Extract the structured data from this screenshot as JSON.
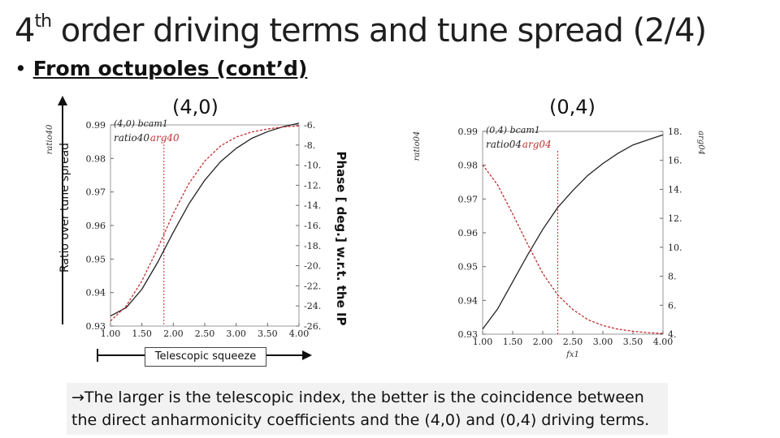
{
  "slide": {
    "title_sup": "th",
    "title_num": "4",
    "title_rest": "order driving terms and tune spread (2/4)",
    "bullet_mark": "•",
    "bullet": "From octupoles (cont’d)",
    "left_plot_title": "(4,0)",
    "right_plot_title": "(0,4)",
    "y_axis_note": "Ratio over tune spread",
    "phase_note": "Phase [ deg.] w.r.t. the IP",
    "x_axis_note": "Telescopic squeeze",
    "arrow_glyph": "→",
    "note_text": "The larger is the telescopic index, the better is the coincidence between the direct anharmonicity coefficients and the (4,0) and (0,4) driving terms."
  },
  "chart_data": [
    {
      "type": "line",
      "legend_lines": [
        "(4,0) bcam1",
        "ratio40",
        "arg40"
      ],
      "ylabel_left": "ratio40",
      "ylabel_right": "arg40",
      "x_ticks": [
        "1.00",
        "1.50",
        "2.00",
        "2.50",
        "3.00",
        "3.50",
        "4.00"
      ],
      "y_ticks": [
        "0.99",
        "0.98",
        "0.97",
        "0.96",
        "0.95",
        "0.94",
        "0.93"
      ],
      "y2_ticks": [
        "-6.",
        "-8.",
        "-10.",
        "-12.",
        "-14.",
        "-16.",
        "-18.",
        "-20.",
        "-22.",
        "-24.",
        "-26."
      ],
      "xlim": [
        1.0,
        4.0
      ],
      "ylim": [
        0.93,
        0.99
      ],
      "y2lim": [
        -26,
        -6
      ],
      "series": [
        {
          "name": "ratio40",
          "color": "#222222",
          "style": "solid",
          "axis": "left",
          "x": [
            1.0,
            1.25,
            1.5,
            1.75,
            2.0,
            2.25,
            2.5,
            2.75,
            3.0,
            3.25,
            3.5,
            3.75,
            4.0
          ],
          "y": [
            0.933,
            0.9355,
            0.941,
            0.949,
            0.958,
            0.9665,
            0.9735,
            0.979,
            0.983,
            0.986,
            0.988,
            0.9895,
            0.9905
          ]
        },
        {
          "name": "arg40",
          "color": "#c03030",
          "style": "dashed",
          "axis": "right",
          "x": [
            1.0,
            1.25,
            1.5,
            1.75,
            2.0,
            2.25,
            2.5,
            2.75,
            3.0,
            3.25,
            3.5,
            3.75,
            4.0
          ],
          "y": [
            -25.5,
            -24.0,
            -21.5,
            -18.3,
            -14.8,
            -11.8,
            -9.6,
            -8.1,
            -7.2,
            -6.7,
            -6.4,
            -6.2,
            -6.1
          ]
        }
      ]
    },
    {
      "type": "line",
      "legend_lines": [
        "(0,4) bcam1",
        "ratio04",
        "arg04"
      ],
      "ylabel_left": "ratio04",
      "ylabel_right": "arg04",
      "xlabel": "fx1",
      "x_ticks": [
        "1.00",
        "1.50",
        "2.00",
        "2.50",
        "3.00",
        "3.50",
        "4.00"
      ],
      "y_ticks": [
        "0.99",
        "0.98",
        "0.97",
        "0.96",
        "0.95",
        "0.94",
        "0.93"
      ],
      "y2_ticks": [
        "18.",
        "16.",
        "14.",
        "12.",
        "10.",
        "8.",
        "6.",
        "4."
      ],
      "xlim": [
        1.0,
        4.0
      ],
      "ylim": [
        0.93,
        0.99
      ],
      "y2lim": [
        4,
        18
      ],
      "series": [
        {
          "name": "ratio04",
          "color": "#222222",
          "style": "solid",
          "axis": "left",
          "x": [
            1.0,
            1.25,
            1.5,
            1.75,
            2.0,
            2.25,
            2.5,
            2.75,
            3.0,
            3.25,
            3.5,
            3.75,
            4.0
          ],
          "y": [
            0.9315,
            0.9375,
            0.9455,
            0.9535,
            0.961,
            0.9675,
            0.9725,
            0.977,
            0.9805,
            0.9835,
            0.986,
            0.9875,
            0.989
          ]
        },
        {
          "name": "arg04",
          "color": "#c03030",
          "style": "dashed",
          "axis": "right",
          "x": [
            1.0,
            1.25,
            1.5,
            1.75,
            2.0,
            2.25,
            2.5,
            2.75,
            3.0,
            3.25,
            3.5,
            3.75,
            4.0
          ],
          "y": [
            15.7,
            14.3,
            12.3,
            10.2,
            8.2,
            6.7,
            5.7,
            5.0,
            4.6,
            4.35,
            4.2,
            4.1,
            4.05
          ]
        }
      ]
    }
  ]
}
